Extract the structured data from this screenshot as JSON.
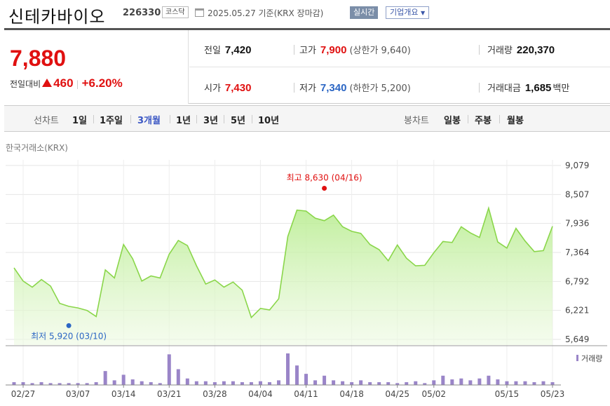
{
  "header": {
    "stock_name": "신테카바이오",
    "stock_code": "226330",
    "market": "코스닥",
    "date_text": "2025.05.27 기준(KRX 장마감)",
    "realtime_label": "실시간",
    "overview_label": "기업개요"
  },
  "quote": {
    "current_price": "7,880",
    "change_label": "전일대비",
    "change_value": "460",
    "change_percent": "+6.20%",
    "prev_close_label": "전일",
    "prev_close": "7,420",
    "open_label": "시가",
    "open": "7,430",
    "high_label": "고가",
    "high": "7,900",
    "upper_limit": "(상한가 9,640)",
    "low_label": "저가",
    "low": "7,340",
    "lower_limit": "(하한가 5,200)",
    "volume_label": "거래량",
    "volume": "220,370",
    "amount_label": "거래대금",
    "amount": "1,685",
    "amount_unit": "백만"
  },
  "tabs": {
    "line_label": "선차트",
    "line_periods": [
      "1일",
      "1주일",
      "3개월",
      "1년",
      "3년",
      "5년",
      "10년"
    ],
    "active": "3개월",
    "candle_label": "봉차트",
    "candle_periods": [
      "일봉",
      "주봉",
      "월봉"
    ]
  },
  "exchange_label": "한국거래소(KRX)",
  "colors": {
    "up": "#e01010",
    "down": "#2b66c4",
    "line": "#8ad64a",
    "volume": "#9a85c8"
  },
  "chart_data": {
    "type": "area",
    "y_ticks": [
      "9,079",
      "8,507",
      "7,936",
      "7,364",
      "6,792",
      "6,221",
      "5,649"
    ],
    "ylim": [
      5649,
      9079
    ],
    "x_labels": [
      "02/27",
      "03/07",
      "03/14",
      "03/21",
      "03/28",
      "04/04",
      "04/11",
      "04/18",
      "04/25",
      "05/02",
      "05/15",
      "05/23"
    ],
    "x_label_index": [
      1,
      7,
      12,
      17,
      22,
      27,
      32,
      37,
      42,
      46,
      54,
      59
    ],
    "high_annotation": "최고 8,630 (04/16)",
    "high_index": 34,
    "high_value": 8630,
    "low_annotation": "최저 5,920 (03/10)",
    "low_index": 6,
    "low_value": 5920,
    "volume_legend": "거래량",
    "series": [
      {
        "values": [
          7060,
          6800,
          6680,
          6830,
          6700,
          6360,
          6300,
          6270,
          6220,
          6100,
          7020,
          6860,
          7520,
          7240,
          6800,
          6900,
          6860,
          7330,
          7600,
          7500,
          7100,
          6740,
          6820,
          6680,
          6780,
          6620,
          6080,
          6260,
          6230,
          6450,
          7680,
          8200,
          8180,
          8040,
          7990,
          8100,
          7870,
          7780,
          7740,
          7520,
          7420,
          7200,
          7510,
          7250,
          7100,
          7110,
          7360,
          7580,
          7560,
          7870,
          7750,
          7660,
          8240,
          7570,
          7450,
          7840,
          7590,
          7380,
          7400,
          7880
        ]
      },
      {
        "name": "거래량",
        "values": [
          3,
          3,
          2,
          3,
          2,
          2,
          2,
          2,
          2,
          3,
          15,
          5,
          11,
          6,
          4,
          3,
          2,
          33,
          17,
          7,
          4,
          4,
          3,
          4,
          4,
          3,
          3,
          4,
          3,
          5,
          34,
          21,
          12,
          5,
          10,
          5,
          4,
          3,
          5,
          3,
          3,
          3,
          2,
          3,
          4,
          2,
          5,
          10,
          6,
          7,
          5,
          7,
          10,
          6,
          4,
          4,
          4,
          3,
          4,
          3
        ]
      }
    ]
  }
}
